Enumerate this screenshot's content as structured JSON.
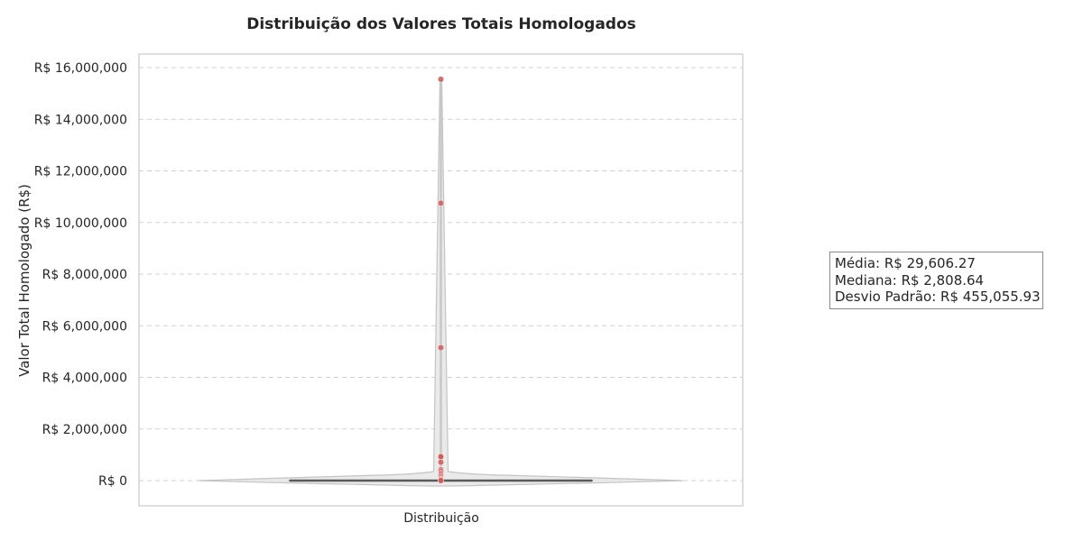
{
  "chart_data": {
    "type": "violin",
    "title": "Distribuição dos Valores Totais Homologados",
    "xlabel": "",
    "ylabel": "Valor Total Homologado (R$)",
    "categories": [
      "Distribuição"
    ],
    "ylim": [
      -950000,
      16500000
    ],
    "yticks": [
      0,
      2000000,
      4000000,
      6000000,
      8000000,
      10000000,
      12000000,
      14000000,
      16000000
    ],
    "ytick_labels": [
      "R$ 0",
      "R$ 2,000,000",
      "R$ 4,000,000",
      "R$ 6,000,000",
      "R$ 8,000,000",
      "R$ 10,000,000",
      "R$ 12,000,000",
      "R$ 14,000,000",
      "R$ 16,000,000"
    ],
    "grid": true,
    "box": {
      "median": 2808.64,
      "whisker_low": 0,
      "whisker_high": 15550000
    },
    "outliers": [
      15550000,
      10750000,
      5150000,
      950000,
      920000,
      710000,
      420000,
      370000,
      300000,
      250000,
      200000,
      150000,
      100000,
      60000,
      30000,
      0
    ],
    "colors": {
      "violin_fill": "#e6e6e6",
      "violin_edge": "#c4c4c4",
      "outlier": "#cd5c5c",
      "box": "#5a5a5a",
      "grid": "#d0d0d0",
      "frame": "#cccccc"
    }
  },
  "stats": {
    "media": "Média: R$ 29,606.27",
    "mediana": "Mediana: R$ 2,808.64",
    "desvio": "Desvio Padrão: R$ 455,055.93"
  }
}
